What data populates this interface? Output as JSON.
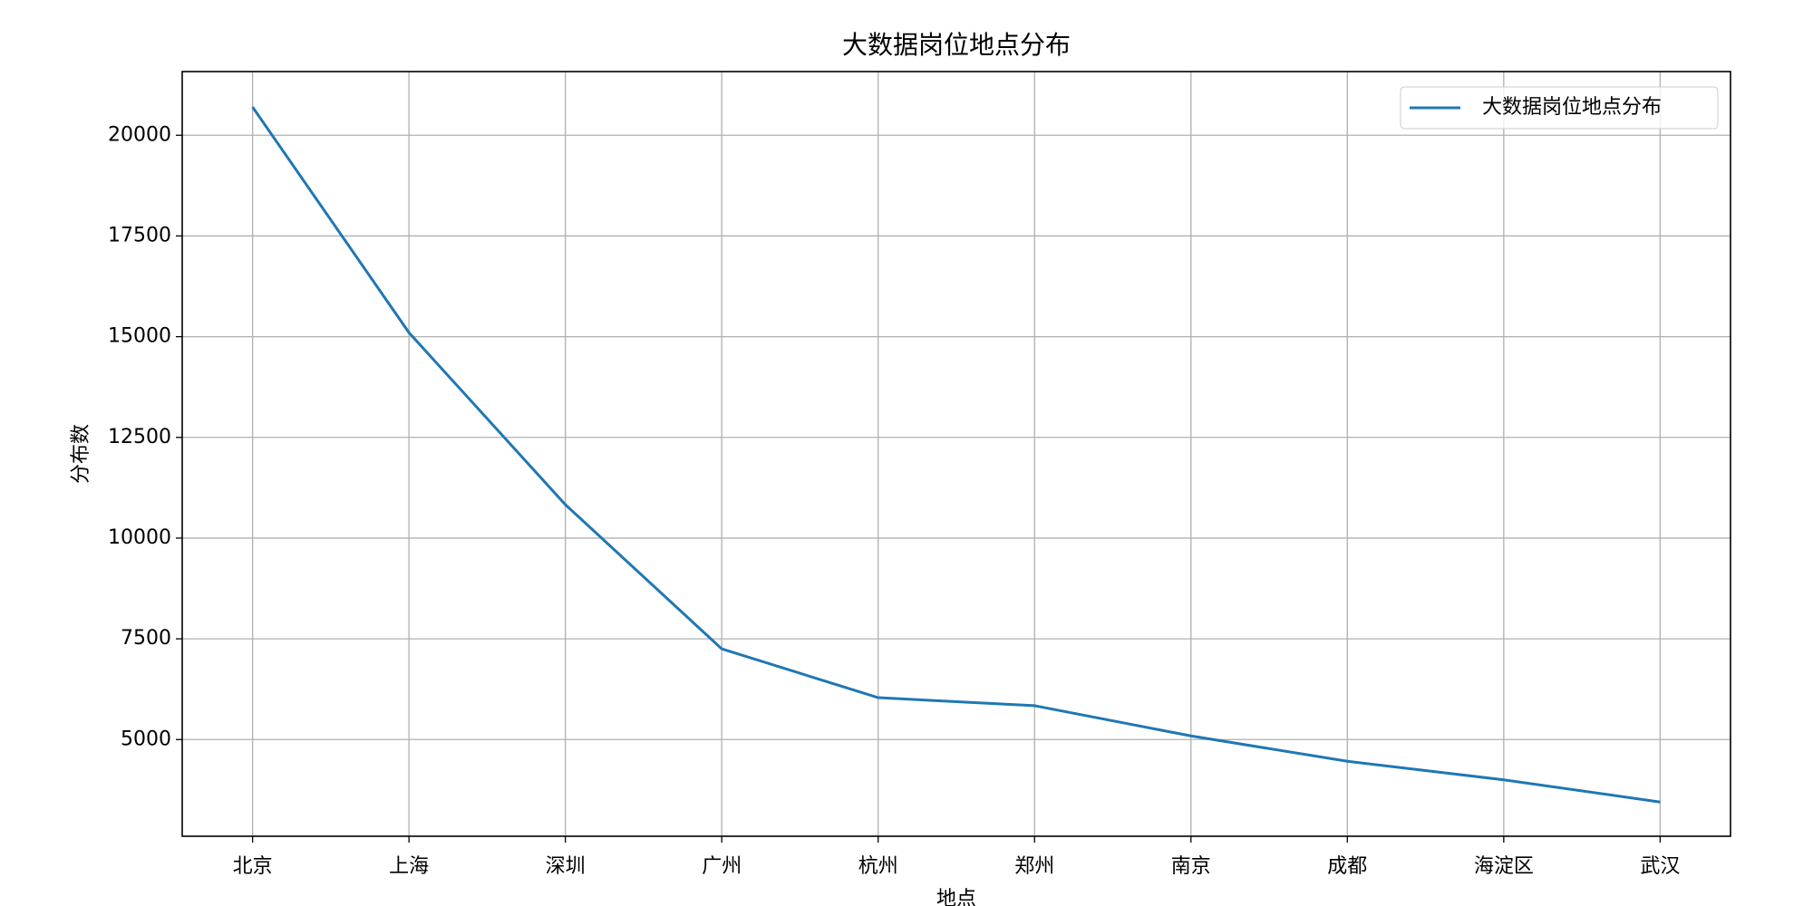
{
  "chart_data": {
    "type": "line",
    "title": "大数据岗位地点分布",
    "xlabel": "地点",
    "ylabel": "分布数",
    "categories": [
      "北京",
      "上海",
      "深圳",
      "广州",
      "杭州",
      "郑州",
      "南京",
      "成都",
      "海淀区",
      "武汉"
    ],
    "series": [
      {
        "name": "大数据岗位地点分布",
        "color": "#1f77b4",
        "values": [
          20700,
          15100,
          10830,
          7250,
          6040,
          5840,
          5090,
          4460,
          4000,
          3450
        ]
      }
    ],
    "ylim": [
      2600,
      21580
    ],
    "yticks": [
      5000,
      7500,
      10000,
      12500,
      15000,
      17500,
      20000
    ],
    "grid": true,
    "legend": "upper right"
  }
}
